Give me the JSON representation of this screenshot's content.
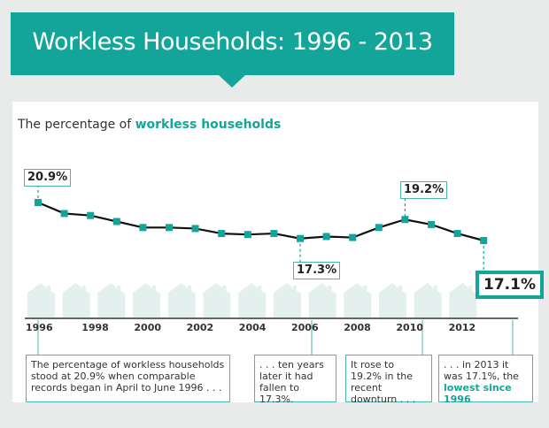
{
  "header": {
    "title": "Workless Households: 1996 - 2013"
  },
  "subtitle": {
    "prefix": "The percentage of ",
    "highlight": "workless households"
  },
  "colors": {
    "accent": "#14a59a",
    "line": "#111111",
    "house": "#e3f0ee",
    "background": "#e9eaea"
  },
  "chart_data": {
    "type": "line",
    "title": "The percentage of workless households",
    "xlabel": "",
    "ylabel": "",
    "x": [
      1996,
      1997,
      1998,
      1999,
      2000,
      2001,
      2002,
      2003,
      2004,
      2005,
      2006,
      2007,
      2008,
      2009,
      2010,
      2011,
      2012,
      2013
    ],
    "series": [
      {
        "name": "Workless households (%)",
        "values": [
          20.9,
          19.8,
          19.6,
          19.0,
          18.4,
          18.4,
          18.3,
          17.8,
          17.7,
          17.8,
          17.3,
          17.5,
          17.4,
          18.4,
          19.2,
          18.7,
          17.8,
          17.1
        ]
      }
    ],
    "xticks": [
      "1996",
      "1998",
      "2000",
      "2002",
      "2004",
      "2006",
      "2008",
      "2010",
      "2012"
    ],
    "ylim": [
      16.5,
      21.2
    ],
    "grid": false,
    "annotations": [
      {
        "x": 1996,
        "label": "20.9%"
      },
      {
        "x": 2006,
        "label": "17.3%"
      },
      {
        "x": 2010,
        "label": "19.2%"
      },
      {
        "x": 2013,
        "label": "17.1%"
      }
    ]
  },
  "notes": [
    {
      "text": "The percentage of workless households stood at 20.9% when comparable records began in April to June 1996 . . ."
    },
    {
      "text": ". . . ten years later it had fallen to 17.3%."
    },
    {
      "text": "It rose to 19.2% in the recent downturn . . ."
    },
    {
      "text_before": ". . . in 2013 it was 17.1%, the ",
      "highlight": "lowest since 1996"
    }
  ]
}
